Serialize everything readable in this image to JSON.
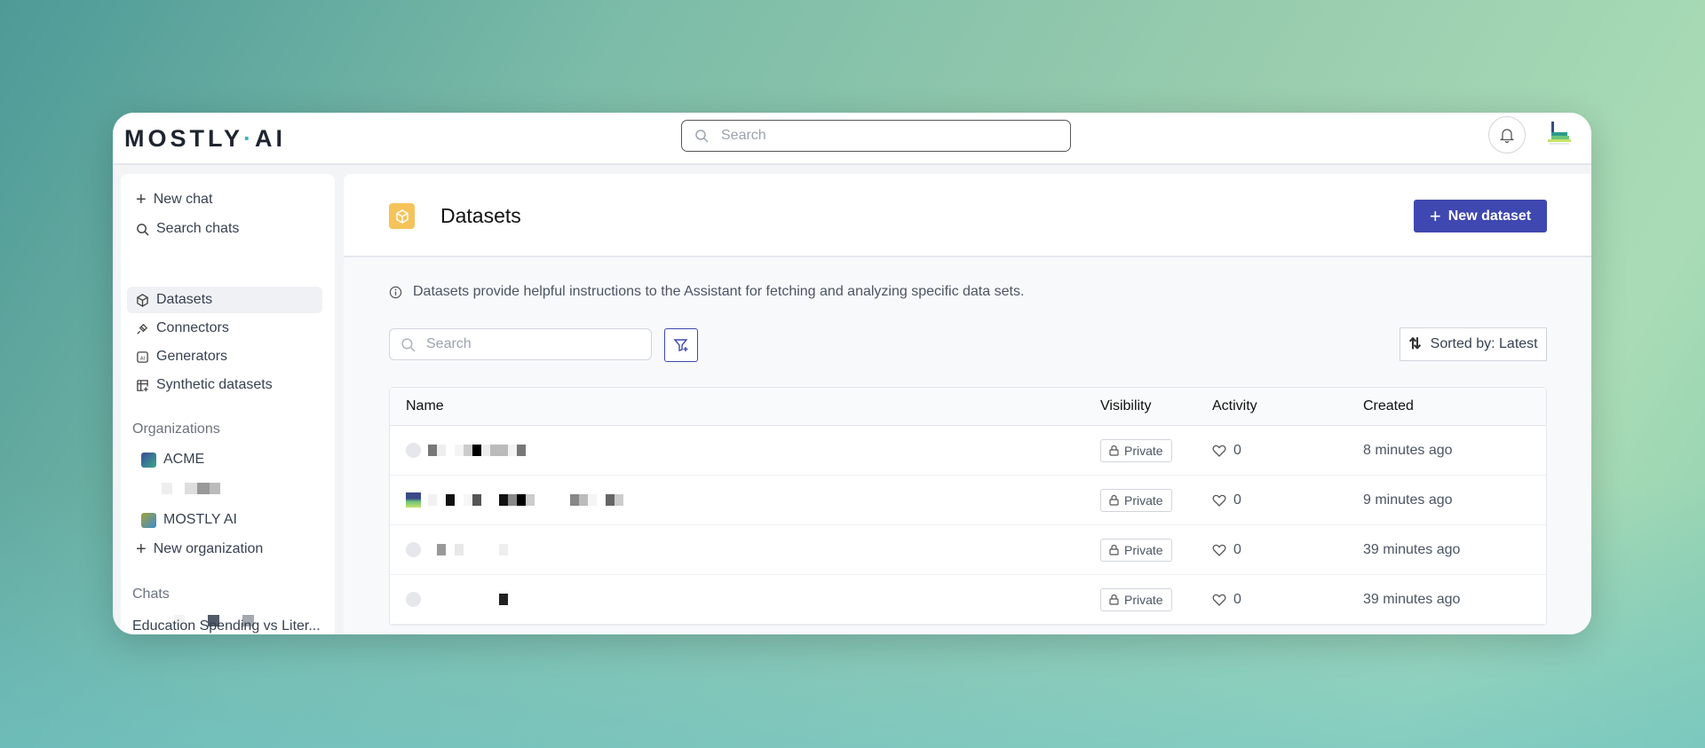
{
  "app": {
    "logo": "MOSTLY·AI",
    "search_placeholder": "Search"
  },
  "sidebar": {
    "actions": [
      {
        "label": "New chat",
        "icon": "plus-icon"
      },
      {
        "label": "Search chats",
        "icon": "search-icon"
      }
    ],
    "nav": [
      {
        "label": "Datasets",
        "icon": "cube-icon",
        "active": true
      },
      {
        "label": "Connectors",
        "icon": "plug-icon"
      },
      {
        "label": "Generators",
        "icon": "ai-chip-icon"
      },
      {
        "label": "Synthetic datasets",
        "icon": "table-sparkle-icon"
      }
    ],
    "organizations_heading": "Organizations",
    "organizations": [
      {
        "label": "ACME"
      },
      {
        "label": "MOSTLY AI"
      }
    ],
    "new_org": "New organization",
    "chats_heading": "Chats",
    "chats": [
      "Education Spending vs Liter..."
    ]
  },
  "page": {
    "title": "Datasets",
    "new_button": "New dataset",
    "info": "Datasets provide helpful instructions to the Assistant for fetching and analyzing specific data sets.",
    "search_placeholder": "Search",
    "sort_label": "Sorted by: Latest",
    "accent": "#3f48b0",
    "icon_color": "#f6c35a"
  },
  "table": {
    "columns": [
      "Name",
      "Visibility",
      "Activity",
      "Created"
    ],
    "rows": [
      {
        "visibility": "Private",
        "activity": "0",
        "created": "8 minutes ago"
      },
      {
        "visibility": "Private",
        "activity": "0",
        "created": "9 minutes ago"
      },
      {
        "visibility": "Private",
        "activity": "0",
        "created": "39 minutes ago"
      },
      {
        "visibility": "Private",
        "activity": "0",
        "created": "39 minutes ago"
      }
    ]
  }
}
